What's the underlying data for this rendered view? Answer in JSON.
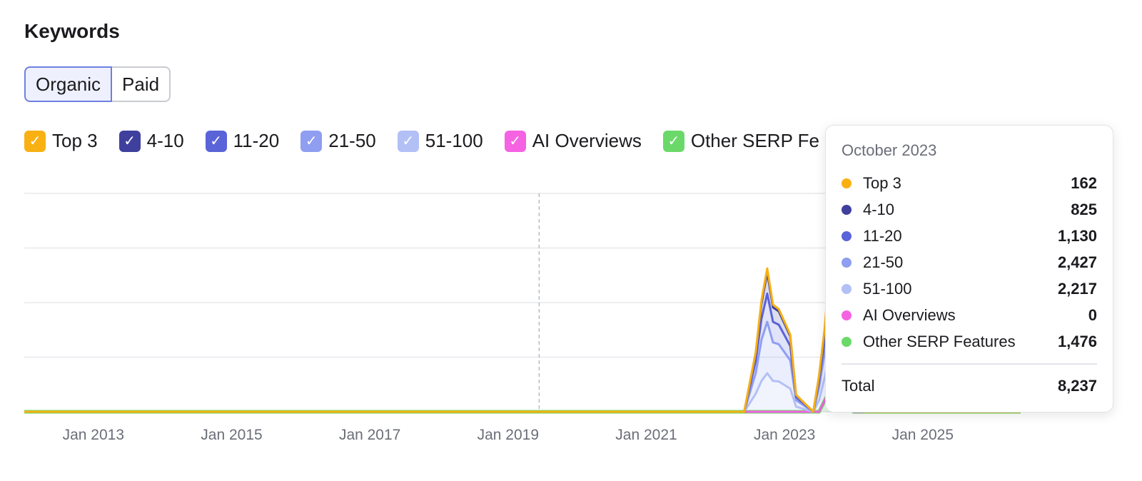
{
  "header": {
    "title": "Keywords"
  },
  "toggle": {
    "organic": "Organic",
    "paid": "Paid"
  },
  "legend": [
    {
      "label": "Top 3",
      "color": "#f8b013"
    },
    {
      "label": "4-10",
      "color": "#3f409d"
    },
    {
      "label": "11-20",
      "color": "#5b63d8"
    },
    {
      "label": "21-50",
      "color": "#8f9ef0"
    },
    {
      "label": "51-100",
      "color": "#b2c0f6"
    },
    {
      "label": "AI Overviews",
      "color": "#f562e2"
    },
    {
      "label": "Other SERP Fe",
      "color": "#6bd96a"
    }
  ],
  "tooltip": {
    "date": "October 2023",
    "rows": [
      {
        "name": "Top 3",
        "value": "162",
        "color": "#f8b013"
      },
      {
        "name": "4-10",
        "value": "825",
        "color": "#3f409d"
      },
      {
        "name": "11-20",
        "value": "1,130",
        "color": "#5b63d8"
      },
      {
        "name": "21-50",
        "value": "2,427",
        "color": "#8f9ef0"
      },
      {
        "name": "51-100",
        "value": "2,217",
        "color": "#b2c0f6"
      },
      {
        "name": "AI Overviews",
        "value": "0",
        "color": "#f562e2"
      },
      {
        "name": "Other SERP Features",
        "value": "1,476",
        "color": "#6bd96a"
      }
    ],
    "total_label": "Total",
    "total_value": "8,237"
  },
  "chart_data": {
    "type": "area",
    "x_tick_labels": [
      "Jan 2013",
      "Jan 2015",
      "Jan 2017",
      "Jan 2019",
      "Jan 2021",
      "Jan 2023",
      "Jan 2025"
    ],
    "xlim": [
      "2012-01",
      "2026-06"
    ],
    "ylim": [
      0,
      8500
    ],
    "grid": true,
    "stacked": true,
    "cursor_date": "2023-10",
    "series": [
      {
        "name": "Top 3",
        "color": "#f8b013",
        "points": [
          [
            "2022-06",
            0
          ],
          [
            "2022-08",
            40
          ],
          [
            "2022-09",
            120
          ],
          [
            "2022-10",
            160
          ],
          [
            "2022-11",
            110
          ],
          [
            "2022-12",
            90
          ],
          [
            "2023-02",
            60
          ],
          [
            "2023-03",
            10
          ],
          [
            "2023-06",
            0
          ],
          [
            "2023-08",
            60
          ],
          [
            "2023-09",
            120
          ],
          [
            "2023-10",
            162
          ],
          [
            "2023-11",
            40
          ],
          [
            "2024-01",
            10
          ],
          [
            "2024-03",
            0
          ]
        ]
      },
      {
        "name": "4-10",
        "color": "#3f409d",
        "points": [
          [
            "2022-06",
            0
          ],
          [
            "2022-08",
            300
          ],
          [
            "2022-09",
            600
          ],
          [
            "2022-10",
            820
          ],
          [
            "2022-11",
            560
          ],
          [
            "2022-12",
            520
          ],
          [
            "2023-02",
            380
          ],
          [
            "2023-03",
            80
          ],
          [
            "2023-06",
            0
          ],
          [
            "2023-08",
            360
          ],
          [
            "2023-09",
            620
          ],
          [
            "2023-10",
            825
          ],
          [
            "2023-11",
            200
          ],
          [
            "2024-01",
            40
          ],
          [
            "2024-03",
            0
          ]
        ]
      },
      {
        "name": "11-20",
        "color": "#5b63d8",
        "points": [
          [
            "2022-06",
            0
          ],
          [
            "2022-08",
            480
          ],
          [
            "2022-09",
            820
          ],
          [
            "2022-10",
            1100
          ],
          [
            "2022-11",
            800
          ],
          [
            "2022-12",
            760
          ],
          [
            "2023-02",
            560
          ],
          [
            "2023-03",
            120
          ],
          [
            "2023-06",
            0
          ],
          [
            "2023-08",
            500
          ],
          [
            "2023-09",
            900
          ],
          [
            "2023-10",
            1130
          ],
          [
            "2023-11",
            300
          ],
          [
            "2024-01",
            60
          ],
          [
            "2024-03",
            0
          ]
        ]
      },
      {
        "name": "21-50",
        "color": "#8f9ef0",
        "points": [
          [
            "2022-06",
            0
          ],
          [
            "2022-08",
            800
          ],
          [
            "2022-09",
            1600
          ],
          [
            "2022-10",
            2000
          ],
          [
            "2022-11",
            1500
          ],
          [
            "2022-12",
            1450
          ],
          [
            "2023-02",
            1100
          ],
          [
            "2023-03",
            250
          ],
          [
            "2023-06",
            0
          ],
          [
            "2023-08",
            1000
          ],
          [
            "2023-09",
            1900
          ],
          [
            "2023-10",
            2427
          ],
          [
            "2023-11",
            600
          ],
          [
            "2024-01",
            120
          ],
          [
            "2024-03",
            0
          ]
        ]
      },
      {
        "name": "51-100",
        "color": "#b2c0f6",
        "points": [
          [
            "2022-06",
            0
          ],
          [
            "2022-08",
            700
          ],
          [
            "2022-09",
            1200
          ],
          [
            "2022-10",
            1500
          ],
          [
            "2022-11",
            1200
          ],
          [
            "2022-12",
            1180
          ],
          [
            "2023-02",
            900
          ],
          [
            "2023-03",
            200
          ],
          [
            "2023-06",
            0
          ],
          [
            "2023-08",
            900
          ],
          [
            "2023-09",
            1700
          ],
          [
            "2023-10",
            2217
          ],
          [
            "2023-11",
            500
          ],
          [
            "2024-01",
            100
          ],
          [
            "2024-03",
            0
          ]
        ]
      },
      {
        "name": "AI Overviews",
        "color": "#f562e2",
        "points": [
          [
            "2012-01",
            0
          ],
          [
            "2026-06",
            0
          ]
        ]
      },
      {
        "name": "Other SERP Features",
        "color": "#6bd96a",
        "points": [
          [
            "2012-01",
            0
          ],
          [
            "2023-07",
            0
          ],
          [
            "2023-09",
            900
          ],
          [
            "2023-10",
            1476
          ],
          [
            "2023-11",
            300
          ],
          [
            "2024-01",
            0
          ],
          [
            "2026-06",
            0
          ]
        ]
      }
    ]
  }
}
